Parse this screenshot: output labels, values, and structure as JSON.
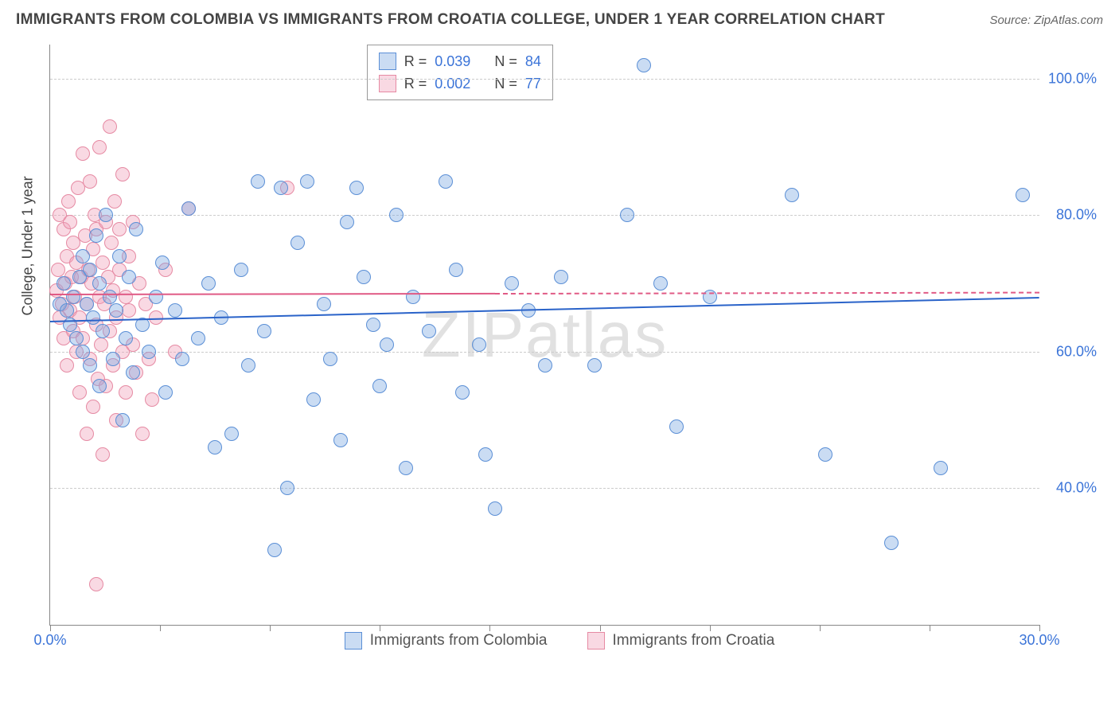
{
  "title": "IMMIGRANTS FROM COLOMBIA VS IMMIGRANTS FROM CROATIA COLLEGE, UNDER 1 YEAR CORRELATION CHART",
  "source": "Source: ZipAtlas.com",
  "watermark": "ZIPatlas",
  "y_axis_label": "College, Under 1 year",
  "chart": {
    "type": "scatter",
    "xlim": [
      0,
      30
    ],
    "ylim": [
      20,
      105
    ],
    "x_ticks": [
      0,
      3.33,
      6.67,
      10,
      13.33,
      16.67,
      20,
      23.33,
      26.67,
      30
    ],
    "x_tick_labels": {
      "0": "0.0%",
      "30": "30.0%"
    },
    "y_gridlines": [
      40,
      60,
      80,
      100
    ],
    "y_tick_labels": {
      "40": "40.0%",
      "60": "60.0%",
      "80": "80.0%",
      "100": "100.0%"
    },
    "grid_color": "#cccccc",
    "axis_color": "#888888",
    "background_color": "#ffffff",
    "tick_label_color": "#3b74d8",
    "marker_radius": 9,
    "marker_stroke_width": 1.5,
    "marker_fill_opacity": 0.35
  },
  "series": {
    "colombia": {
      "label": "Immigrants from Colombia",
      "stroke": "#5b8fd6",
      "fill": "rgba(122,167,224,0.4)",
      "trend_color": "#2a63c9",
      "r": "0.039",
      "n": "84",
      "trend": {
        "x0": 0,
        "y0": 64.5,
        "x1": 30,
        "y1": 68.0,
        "dash_split": 30
      },
      "points": [
        [
          0.3,
          67
        ],
        [
          0.4,
          70
        ],
        [
          0.5,
          66
        ],
        [
          0.6,
          64
        ],
        [
          0.7,
          68
        ],
        [
          0.8,
          62
        ],
        [
          0.9,
          71
        ],
        [
          1.0,
          74
        ],
        [
          1.0,
          60
        ],
        [
          1.1,
          67
        ],
        [
          1.2,
          58
        ],
        [
          1.2,
          72
        ],
        [
          1.3,
          65
        ],
        [
          1.4,
          77
        ],
        [
          1.5,
          55
        ],
        [
          1.5,
          70
        ],
        [
          1.6,
          63
        ],
        [
          1.7,
          80
        ],
        [
          1.8,
          68
        ],
        [
          1.9,
          59
        ],
        [
          2.0,
          66
        ],
        [
          2.1,
          74
        ],
        [
          2.2,
          50
        ],
        [
          2.3,
          62
        ],
        [
          2.4,
          71
        ],
        [
          2.5,
          57
        ],
        [
          2.6,
          78
        ],
        [
          2.8,
          64
        ],
        [
          3.0,
          60
        ],
        [
          3.2,
          68
        ],
        [
          3.4,
          73
        ],
        [
          3.5,
          54
        ],
        [
          3.8,
          66
        ],
        [
          4.0,
          59
        ],
        [
          4.2,
          81
        ],
        [
          4.5,
          62
        ],
        [
          4.8,
          70
        ],
        [
          5.0,
          46
        ],
        [
          5.2,
          65
        ],
        [
          5.5,
          48
        ],
        [
          5.8,
          72
        ],
        [
          6.0,
          58
        ],
        [
          6.3,
          85
        ],
        [
          6.5,
          63
        ],
        [
          6.8,
          31
        ],
        [
          7.0,
          84
        ],
        [
          7.2,
          40
        ],
        [
          7.5,
          76
        ],
        [
          7.8,
          85
        ],
        [
          8.0,
          53
        ],
        [
          8.3,
          67
        ],
        [
          8.5,
          59
        ],
        [
          8.8,
          47
        ],
        [
          9.0,
          79
        ],
        [
          9.3,
          84
        ],
        [
          9.5,
          71
        ],
        [
          9.8,
          64
        ],
        [
          10.0,
          55
        ],
        [
          10.2,
          61
        ],
        [
          10.5,
          80
        ],
        [
          10.8,
          43
        ],
        [
          11.0,
          68
        ],
        [
          11.5,
          63
        ],
        [
          12.0,
          85
        ],
        [
          12.3,
          72
        ],
        [
          12.5,
          54
        ],
        [
          13.0,
          61
        ],
        [
          13.2,
          45
        ],
        [
          13.5,
          37
        ],
        [
          14.0,
          70
        ],
        [
          14.5,
          66
        ],
        [
          15.0,
          58
        ],
        [
          15.5,
          71
        ],
        [
          16.5,
          58
        ],
        [
          17.5,
          80
        ],
        [
          18.0,
          102
        ],
        [
          18.5,
          70
        ],
        [
          19.0,
          49
        ],
        [
          20.0,
          68
        ],
        [
          22.5,
          83
        ],
        [
          23.5,
          45
        ],
        [
          25.5,
          32
        ],
        [
          27.0,
          43
        ],
        [
          29.5,
          83
        ]
      ]
    },
    "croatia": {
      "label": "Immigrants from Croatia",
      "stroke": "#e68aa3",
      "fill": "rgba(240,160,185,0.4)",
      "trend_color": "#e05a85",
      "r": "0.002",
      "n": "77",
      "trend": {
        "x0": 0,
        "y0": 68.5,
        "x1": 30,
        "y1": 68.8,
        "dash_split": 13.5
      },
      "points": [
        [
          0.2,
          69
        ],
        [
          0.25,
          72
        ],
        [
          0.3,
          65
        ],
        [
          0.3,
          80
        ],
        [
          0.35,
          67
        ],
        [
          0.4,
          78
        ],
        [
          0.4,
          62
        ],
        [
          0.45,
          70
        ],
        [
          0.5,
          74
        ],
        [
          0.5,
          58
        ],
        [
          0.55,
          82
        ],
        [
          0.6,
          66
        ],
        [
          0.6,
          79
        ],
        [
          0.65,
          71
        ],
        [
          0.7,
          63
        ],
        [
          0.7,
          76
        ],
        [
          0.75,
          68
        ],
        [
          0.8,
          60
        ],
        [
          0.8,
          73
        ],
        [
          0.85,
          84
        ],
        [
          0.9,
          65
        ],
        [
          0.9,
          54
        ],
        [
          0.95,
          71
        ],
        [
          1.0,
          89
        ],
        [
          1.0,
          62
        ],
        [
          1.05,
          77
        ],
        [
          1.1,
          67
        ],
        [
          1.1,
          48
        ],
        [
          1.15,
          72
        ],
        [
          1.2,
          85
        ],
        [
          1.2,
          59
        ],
        [
          1.25,
          70
        ],
        [
          1.3,
          75
        ],
        [
          1.3,
          52
        ],
        [
          1.35,
          80
        ],
        [
          1.4,
          64
        ],
        [
          1.4,
          78
        ],
        [
          1.45,
          56
        ],
        [
          1.5,
          68
        ],
        [
          1.5,
          90
        ],
        [
          1.55,
          61
        ],
        [
          1.6,
          73
        ],
        [
          1.6,
          45
        ],
        [
          1.65,
          67
        ],
        [
          1.7,
          79
        ],
        [
          1.7,
          55
        ],
        [
          1.75,
          71
        ],
        [
          1.8,
          93
        ],
        [
          1.8,
          63
        ],
        [
          1.85,
          76
        ],
        [
          1.9,
          58
        ],
        [
          1.9,
          69
        ],
        [
          1.95,
          82
        ],
        [
          2.0,
          65
        ],
        [
          2.0,
          50
        ],
        [
          2.1,
          72
        ],
        [
          2.1,
          78
        ],
        [
          2.2,
          60
        ],
        [
          2.2,
          86
        ],
        [
          2.3,
          68
        ],
        [
          2.3,
          54
        ],
        [
          2.4,
          74
        ],
        [
          2.4,
          66
        ],
        [
          2.5,
          61
        ],
        [
          2.5,
          79
        ],
        [
          2.6,
          57
        ],
        [
          2.7,
          70
        ],
        [
          2.8,
          48
        ],
        [
          2.9,
          67
        ],
        [
          3.0,
          59
        ],
        [
          3.1,
          53
        ],
        [
          3.2,
          65
        ],
        [
          3.5,
          72
        ],
        [
          3.8,
          60
        ],
        [
          4.2,
          81
        ],
        [
          1.4,
          26
        ],
        [
          7.2,
          84
        ]
      ]
    }
  },
  "legend_top": {
    "r_label": "R =",
    "n_label": "N ="
  },
  "legend_bottom": [
    {
      "key": "colombia"
    },
    {
      "key": "croatia"
    }
  ]
}
